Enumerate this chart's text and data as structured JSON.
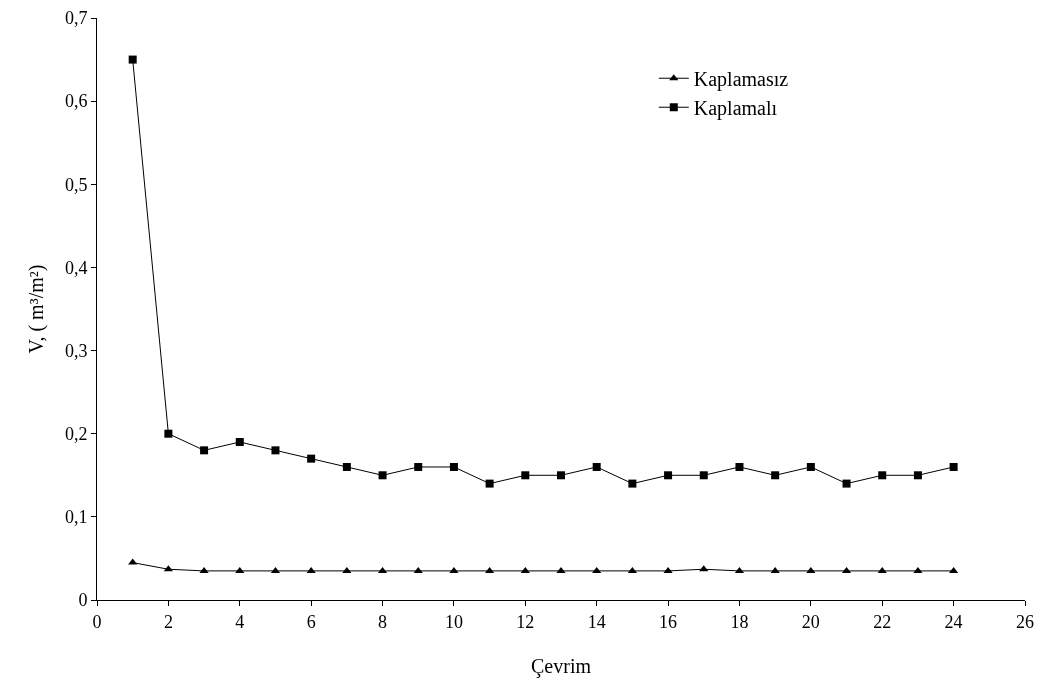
{
  "chart_data": {
    "type": "line",
    "xlabel": "Çevrim",
    "ylabel": "V, ( m³/m²)",
    "x": [
      1,
      2,
      3,
      4,
      5,
      6,
      7,
      8,
      9,
      10,
      11,
      12,
      13,
      14,
      15,
      16,
      17,
      18,
      19,
      20,
      21,
      22,
      23,
      24
    ],
    "series": [
      {
        "name": "Kaplamasız",
        "color": "#000000",
        "marker": "triangle",
        "values": [
          0.045,
          0.037,
          0.035,
          0.035,
          0.035,
          0.035,
          0.035,
          0.035,
          0.035,
          0.035,
          0.035,
          0.035,
          0.035,
          0.035,
          0.035,
          0.035,
          0.037,
          0.035,
          0.035,
          0.035,
          0.035,
          0.035,
          0.035,
          0.035
        ]
      },
      {
        "name": "Kaplamalı",
        "color": "#000000",
        "marker": "square",
        "values": [
          0.65,
          0.2,
          0.18,
          0.19,
          0.18,
          0.17,
          0.16,
          0.15,
          0.16,
          0.16,
          0.14,
          0.15,
          0.15,
          0.16,
          0.14,
          0.15,
          0.15,
          0.16,
          0.15,
          0.16,
          0.14,
          0.15,
          0.15,
          0.16
        ]
      }
    ],
    "xlim": [
      0,
      26
    ],
    "xticks": [
      0,
      2,
      4,
      6,
      8,
      10,
      12,
      14,
      16,
      18,
      20,
      22,
      24,
      26
    ],
    "ylim": [
      0,
      0.7
    ],
    "yticks": [
      0,
      {
        "value": 0.1,
        "label": "0,1"
      },
      {
        "value": 0.2,
        "label": "0,2"
      },
      {
        "value": 0.3,
        "label": "0,3"
      },
      {
        "value": 0.4,
        "label": "0,4"
      },
      {
        "value": 0.5,
        "label": "0,5"
      },
      {
        "value": 0.6,
        "label": "0,6"
      },
      {
        "value": 0.7,
        "label": "0,7"
      }
    ],
    "grid": false,
    "legend": "top right",
    "line_style": "solid"
  }
}
